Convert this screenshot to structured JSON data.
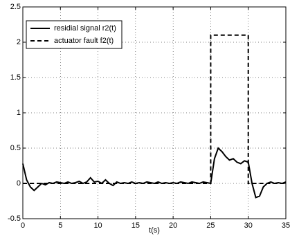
{
  "chart_data": {
    "type": "line",
    "xlabel": "t(s)",
    "xlim": [
      0,
      35
    ],
    "xticks": [
      0,
      5,
      10,
      15,
      20,
      25,
      30,
      35
    ],
    "ylim": [
      -0.5,
      2.5
    ],
    "yticks": [
      -0.5,
      0,
      0.5,
      1,
      1.5,
      2,
      2.5
    ],
    "grid": true,
    "legend": "upper left",
    "series": [
      {
        "name": "residial signal r2(t)",
        "color": "#000000",
        "style": "solid",
        "x": [
          0,
          0.5,
          1,
          1.5,
          2,
          2.5,
          3,
          3.5,
          4,
          4.5,
          5,
          5.5,
          6,
          6.5,
          7,
          7.5,
          8,
          8.5,
          9,
          9.5,
          10,
          10.5,
          11,
          11.5,
          12,
          12.5,
          13,
          13.5,
          14,
          14.5,
          15,
          15.5,
          16,
          16.5,
          17,
          17.5,
          18,
          18.5,
          19,
          19.5,
          20,
          20.5,
          21,
          21.5,
          22,
          22.5,
          23,
          23.5,
          24,
          24.5,
          25,
          25.5,
          26,
          26.5,
          27,
          27.5,
          28,
          28.5,
          29,
          29.5,
          30,
          30.5,
          31,
          31.5,
          32,
          32.5,
          33,
          33.5,
          34,
          34.5,
          35
        ],
        "values": [
          0.28,
          0.05,
          -0.05,
          -0.1,
          -0.05,
          0.0,
          -0.02,
          0.01,
          0.0,
          0.02,
          0.01,
          0.0,
          0.02,
          0.0,
          0.01,
          0.03,
          0.0,
          0.02,
          0.08,
          0.02,
          0.03,
          0.0,
          0.05,
          0.0,
          -0.03,
          0.02,
          0.0,
          0.01,
          0.0,
          0.02,
          0.0,
          0.01,
          0.0,
          0.02,
          0.01,
          0.0,
          0.02,
          0.0,
          0.01,
          0.0,
          0.01,
          0.0,
          0.02,
          0.01,
          0.0,
          0.02,
          0.01,
          0.0,
          0.02,
          0.01,
          0.0,
          0.35,
          0.5,
          0.45,
          0.38,
          0.33,
          0.35,
          0.3,
          0.28,
          0.32,
          0.3,
          0.0,
          -0.2,
          -0.18,
          -0.05,
          0.0,
          0.02,
          0.0,
          0.01,
          0.0,
          0.02
        ]
      },
      {
        "name": "actuator fault f2(t)",
        "color": "#000000",
        "style": "dashed",
        "x": [
          0,
          25,
          25,
          30,
          30,
          35
        ],
        "values": [
          0,
          0,
          2.1,
          2.1,
          0,
          0
        ]
      }
    ]
  }
}
